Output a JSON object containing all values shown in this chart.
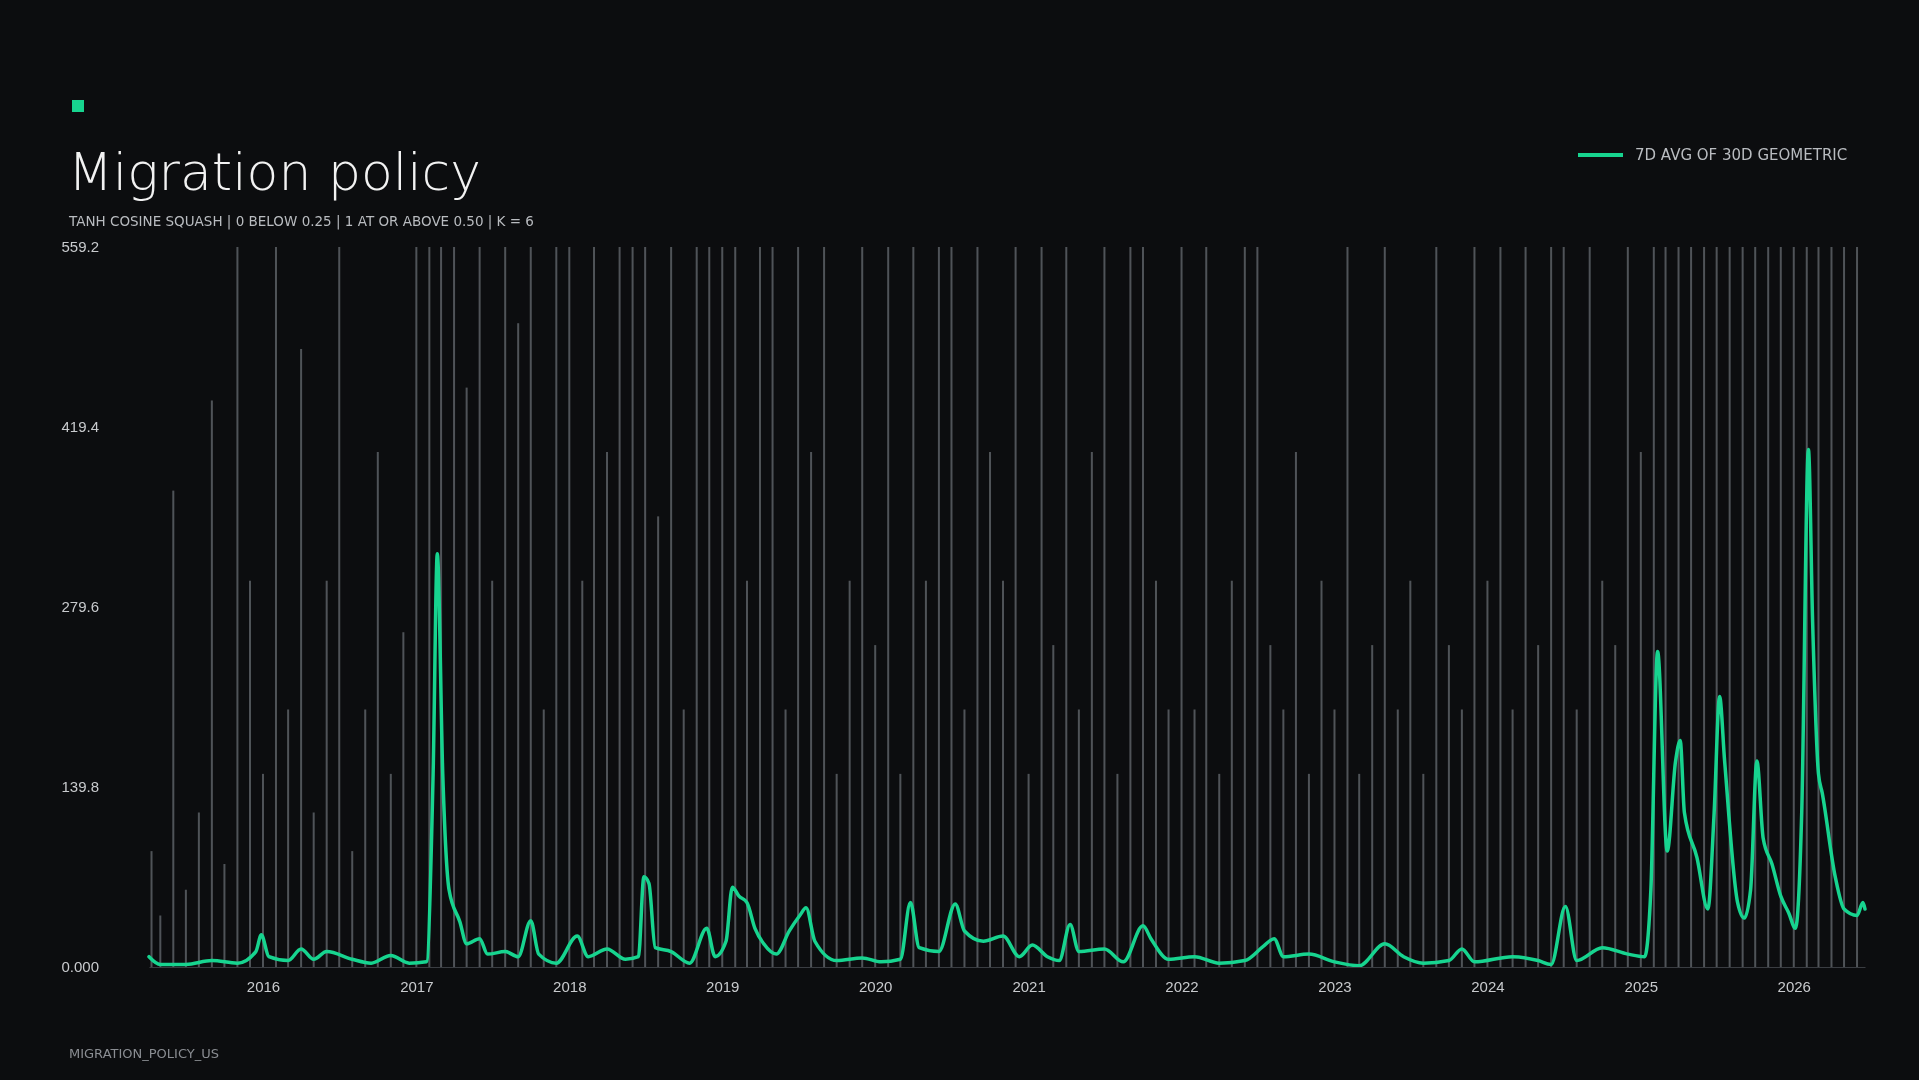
{
  "chart_data": {
    "type": "line",
    "title": "Migration policy",
    "subtitle": "TANH COSINE SQUASH | 0 BELOW 0.25 | 1 AT OR ABOVE 0.50 | K = 6",
    "annotations": [
      "MIGRATION_POLICY_US"
    ],
    "xlim": [
      "2015-04-04",
      "2026-06-20"
    ],
    "xticks": [
      {
        "value": "2016",
        "label": "2016"
      },
      {
        "value": "2017",
        "label": "2017"
      },
      {
        "value": "2018",
        "label": "2018"
      },
      {
        "value": "2019",
        "label": "2019"
      },
      {
        "value": "2020",
        "label": "2020"
      },
      {
        "value": "2021",
        "label": "2021"
      },
      {
        "value": "2022",
        "label": "2022"
      },
      {
        "value": "2023",
        "label": "2023"
      },
      {
        "value": "2024",
        "label": "2024"
      },
      {
        "value": "2025",
        "label": "2025"
      },
      {
        "value": "2026",
        "label": "2026"
      }
    ],
    "ylim": [
      0,
      559.2
    ],
    "yticks": [
      {
        "value": 0,
        "label": "0.000"
      },
      139.8,
      279.6,
      419.4,
      559.2
    ],
    "grid": false,
    "legend": "top right",
    "series": [
      {
        "type": "bar",
        "color": "#5c6065",
        "x": [
          "2015-04-10",
          "2015-05",
          "2015-06",
          "2015-07",
          "2015-08",
          "2015-09",
          "2015-10",
          "2015-11",
          "2015-12",
          "2016-01",
          "2016-02",
          "2016-03",
          "2016-04",
          "2016-05",
          "2016-06",
          "2016-07",
          "2016-08",
          "2016-09",
          "2016-10",
          "2016-11",
          "2016-12",
          "2017-01",
          "2017-02",
          "2017-03",
          "2017-04",
          "2017-05",
          "2017-06",
          "2017-07",
          "2017-08",
          "2017-09",
          "2017-10",
          "2017-11",
          "2017-12",
          "2018-01",
          "2018-02",
          "2018-03",
          "2018-04",
          "2018-05",
          "2018-06",
          "2018-07",
          "2018-08",
          "2018-09",
          "2018-10",
          "2018-11",
          "2018-12",
          "2019-01",
          "2019-02",
          "2019-03",
          "2019-04",
          "2019-05",
          "2019-06",
          "2019-07",
          "2019-08",
          "2019-09",
          "2019-10",
          "2019-11",
          "2019-12",
          "2020-01",
          "2020-02",
          "2020-03",
          "2020-04",
          "2020-05",
          "2020-06",
          "2020-07",
          "2020-08",
          "2020-09",
          "2020-10",
          "2020-11",
          "2020-12",
          "2021-01",
          "2021-02",
          "2021-03",
          "2021-04",
          "2021-05",
          "2021-06",
          "2021-07",
          "2021-08",
          "2021-09",
          "2021-10",
          "2021-11",
          "2021-12",
          "2022-01",
          "2022-02",
          "2022-03",
          "2022-04",
          "2022-05",
          "2022-06",
          "2022-07",
          "2022-08",
          "2022-09",
          "2022-10",
          "2022-11",
          "2022-12",
          "2023-01",
          "2023-02",
          "2023-03",
          "2023-04",
          "2023-05",
          "2023-06",
          "2023-07",
          "2023-08",
          "2023-09",
          "2023-10",
          "2023-11",
          "2023-12",
          "2024-01",
          "2024-02",
          "2024-03",
          "2024-04",
          "2024-05",
          "2024-06",
          "2024-07",
          "2024-08",
          "2024-09",
          "2024-10",
          "2024-11",
          "2024-12",
          "2025-01",
          "2025-02",
          "2025-03",
          "2025-04",
          "2025-05",
          "2025-06",
          "2025-07",
          "2025-08",
          "2025-09",
          "2025-10",
          "2025-11",
          "2025-12",
          "2026-01",
          "2026-02",
          "2026-03",
          "2026-04",
          "2026-05",
          "2026-06"
        ],
        "values": [
          90,
          40,
          370,
          60,
          120,
          440,
          80,
          559.2,
          300,
          150,
          559.2,
          200,
          480,
          120,
          300,
          559.2,
          90,
          200,
          400,
          150,
          260,
          559.2,
          559.2,
          559.2,
          559.2,
          450,
          559.2,
          300,
          559.2,
          500,
          559.2,
          200,
          559.2,
          559.2,
          300,
          559.2,
          400,
          559.2,
          559.2,
          559.2,
          350,
          559.2,
          200,
          559.2,
          559.2,
          559.2,
          559.2,
          300,
          559.2,
          559.2,
          200,
          559.2,
          400,
          559.2,
          150,
          300,
          559.2,
          250,
          559.2,
          150,
          559.2,
          300,
          559.2,
          559.2,
          200,
          559.2,
          400,
          300,
          559.2,
          150,
          559.2,
          250,
          559.2,
          200,
          400,
          559.2,
          150,
          559.2,
          559.2,
          300,
          200,
          559.2,
          200,
          559.2,
          150,
          300,
          559.2,
          559.2,
          250,
          200,
          400,
          150,
          300,
          200,
          559.2,
          150,
          250,
          559.2,
          200,
          300,
          150,
          559.2,
          250,
          200,
          559.2,
          300,
          559.2,
          200,
          559.2,
          250,
          559.2,
          559.2,
          200,
          559.2,
          300,
          250,
          559.2,
          400,
          559.2,
          559.2,
          559.2,
          559.2,
          559.2,
          559.2,
          559.2,
          559.2,
          559.2,
          559.2,
          559.2,
          559.2,
          559.2,
          559.2,
          559.2,
          559.2,
          559.2
        ]
      },
      {
        "name": "7D AVG OF 30D GEOMETRIC",
        "color": "#17d48f",
        "x": [
          "2015-04-04",
          "2015-05-01",
          "2015-07-01",
          "2015-09-01",
          "2015-11-01",
          "2015-12-15",
          "2015-12-28",
          "2016-01-15",
          "2016-03-01",
          "2016-04-01",
          "2016-05-01",
          "2016-06-01",
          "2016-08-01",
          "2016-09-15",
          "2016-11-01",
          "2016-12-15",
          "2017-01-25",
          "2017-02-10",
          "2017-02-20",
          "2017-03-05",
          "2017-03-20",
          "2017-04-15",
          "2017-05-01",
          "2017-06-01",
          "2017-06-20",
          "2017-08-01",
          "2017-09-01",
          "2017-10-01",
          "2017-10-20",
          "2017-12-01",
          "2018-01-20",
          "2018-02-15",
          "2018-04-01",
          "2018-05-15",
          "2018-06-15",
          "2018-06-28",
          "2018-07-10",
          "2018-07-25",
          "2018-09-01",
          "2018-10-15",
          "2018-11-25",
          "2018-12-15",
          "2019-01-10",
          "2019-01-25",
          "2019-02-10",
          "2019-03-01",
          "2019-03-20",
          "2019-04-10",
          "2019-05-10",
          "2019-06-10",
          "2019-07-05",
          "2019-07-20",
          "2019-08-10",
          "2019-10-01",
          "2019-12-01",
          "2020-01-15",
          "2020-03-01",
          "2020-03-25",
          "2020-04-15",
          "2020-06-01",
          "2020-07-10",
          "2020-08-01",
          "2020-09-15",
          "2020-11-01",
          "2020-12-10",
          "2021-01-10",
          "2021-02-15",
          "2021-03-15",
          "2021-04-10",
          "2021-05-01",
          "2021-07-01",
          "2021-08-15",
          "2021-10-01",
          "2021-10-20",
          "2021-12-01",
          "2022-02-01",
          "2022-04-01",
          "2022-06-01",
          "2022-07-15",
          "2022-08-10",
          "2022-09-01",
          "2022-11-01",
          "2023-01-01",
          "2023-03-01",
          "2023-05-01",
          "2023-06-15",
          "2023-08-01",
          "2023-10-01",
          "2023-11-01",
          "2023-12-01",
          "2024-03-01",
          "2024-05-01",
          "2024-06-01",
          "2024-07-05",
          "2024-08-01",
          "2024-10-01",
          "2024-12-01",
          "2025-01-10",
          "2025-01-25",
          "2025-02-10",
          "2025-03-05",
          "2025-03-25",
          "2025-04-05",
          "2025-04-15",
          "2025-05-15",
          "2025-06-10",
          "2025-06-25",
          "2025-07-08",
          "2025-07-20",
          "2025-08-20",
          "2025-09-05",
          "2025-09-20",
          "2025-10-05",
          "2025-10-20",
          "2025-11-10",
          "2025-12-01",
          "2025-12-20",
          "2026-01-05",
          "2026-01-20",
          "2026-02-05",
          "2026-02-15",
          "2026-03-01",
          "2026-03-10",
          "2026-04-10",
          "2026-05-01",
          "2026-06-01",
          "2026-06-15",
          "2026-06-20"
        ],
        "values": [
          8,
          2,
          2,
          5,
          3,
          12,
          25,
          8,
          5,
          14,
          6,
          12,
          6,
          3,
          9,
          3,
          4,
          150,
          321,
          150,
          60,
          35,
          18,
          22,
          10,
          12,
          8,
          36,
          10,
          3,
          24,
          8,
          14,
          6,
          8,
          70,
          65,
          15,
          12,
          3,
          30,
          8,
          20,
          62,
          55,
          50,
          30,
          18,
          10,
          28,
          40,
          46,
          20,
          5,
          7,
          4,
          6,
          50,
          15,
          12,
          49,
          28,
          20,
          24,
          8,
          17,
          8,
          5,
          33,
          12,
          14,
          4,
          32,
          22,
          6,
          8,
          3,
          5,
          16,
          22,
          8,
          10,
          4,
          1,
          18,
          8,
          3,
          5,
          14,
          4,
          8,
          5,
          2,
          47,
          5,
          15,
          10,
          8,
          60,
          245,
          90,
          160,
          176,
          120,
          85,
          45,
          120,
          210,
          160,
          50,
          38,
          60,
          160,
          100,
          80,
          55,
          42,
          30,
          120,
          402,
          268,
          150,
          135,
          70,
          45,
          40,
          50,
          45
        ]
      }
    ]
  }
}
